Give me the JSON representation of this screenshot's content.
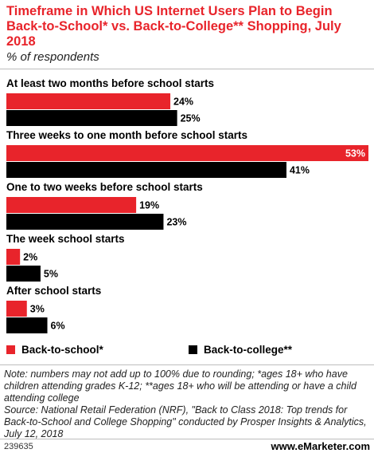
{
  "chart_data": {
    "type": "bar",
    "orientation": "horizontal",
    "title": "Timeframe in Which US Internet Users Plan to Begin Back-to-School* vs. Back-to-College** Shopping, July 2018",
    "subtitle": "% of respondents",
    "categories": [
      "At least two months before school starts",
      "Three weeks to one month before school starts",
      "One to two weeks before school starts",
      "The week school starts",
      "After school starts"
    ],
    "series": [
      {
        "name": "Back-to-school*",
        "color": "#e8242b",
        "values": [
          24,
          53,
          19,
          2,
          3
        ]
      },
      {
        "name": "Back-to-college**",
        "color": "#000000",
        "values": [
          25,
          41,
          23,
          5,
          6
        ]
      }
    ],
    "value_suffix": "%",
    "xlim": [
      0,
      53
    ],
    "grid": false,
    "legend_position": "bottom"
  },
  "note": "Note: numbers may not add up to 100% due to rounding; *ages 18+ who have children attending grades K-12; **ages 18+ who will be attending or have a child attending college",
  "source": "Source: National Retail Federation (NRF), \"Back to Class 2018: Top trends for Back-to-School and College Shopping\" conducted by Prosper Insights & Analytics, July 12, 2018",
  "footer": {
    "chart_id": "239635",
    "brand": "www.eMarketer.com"
  }
}
